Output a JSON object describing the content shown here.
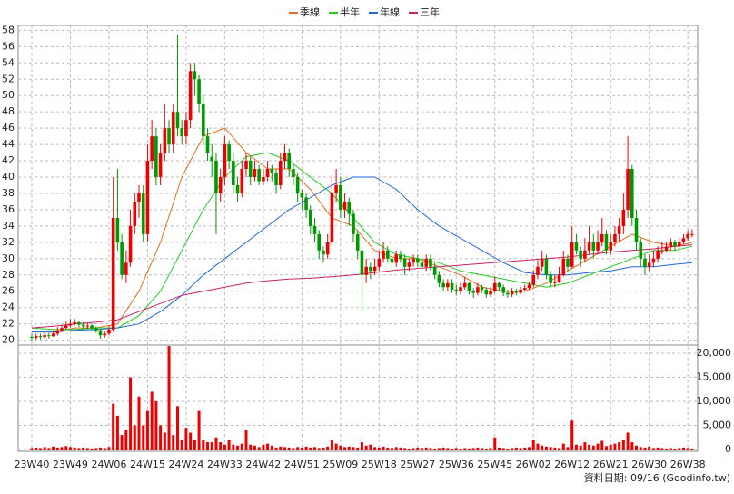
{
  "chart_data": {
    "type": "candlestick",
    "legend": [
      {
        "name": "季線",
        "color": "#e07020"
      },
      {
        "name": "半年",
        "color": "#22cc22"
      },
      {
        "name": "年線",
        "color": "#2266dd"
      },
      {
        "name": "三年",
        "color": "#cc2266"
      }
    ],
    "footer": "資料日期: 09/16 (Goodinfo.tw)",
    "categories": [
      "23W40",
      null,
      null,
      null,
      null,
      null,
      null,
      null,
      null,
      "23W49",
      null,
      null,
      null,
      null,
      null,
      null,
      null,
      null,
      "24W06",
      null,
      null,
      null,
      null,
      null,
      null,
      null,
      null,
      "24W15",
      null,
      null,
      null,
      null,
      null,
      null,
      null,
      null,
      "24W24",
      null,
      null,
      null,
      null,
      null,
      null,
      null,
      null,
      "24W33",
      null,
      null,
      null,
      null,
      null,
      null,
      null,
      null,
      "24W42",
      null,
      null,
      null,
      null,
      null,
      null,
      null,
      null,
      "24W51",
      null,
      null,
      null,
      null,
      null,
      null,
      null,
      null,
      "25W09",
      null,
      null,
      null,
      null,
      null,
      null,
      null,
      null,
      "25W18",
      null,
      null,
      null,
      null,
      null,
      null,
      null,
      null,
      "25W27",
      null,
      null,
      null,
      null,
      null,
      null,
      null,
      null,
      "25W36",
      null,
      null,
      null,
      null,
      null,
      null,
      null,
      null,
      "25W45",
      null,
      null,
      null,
      null,
      null,
      null,
      null,
      null,
      "26W02",
      null,
      null,
      null,
      null,
      null,
      null,
      null,
      null,
      "26W12",
      null,
      null,
      null,
      null,
      null,
      null,
      null,
      null,
      "26W21",
      null,
      null,
      null,
      null,
      null,
      null,
      null,
      null,
      "26W30",
      null,
      null,
      null,
      null,
      null,
      null,
      null,
      null,
      "26W38",
      null
    ],
    "candles": [
      [
        20.4,
        20.8,
        20,
        20.3
      ],
      [
        20.3,
        20.8,
        20.1,
        20.5
      ],
      [
        20.5,
        20.8,
        20.1,
        20.4
      ],
      [
        20.4,
        20.9,
        20.2,
        20.6
      ],
      [
        20.6,
        20.9,
        20.2,
        20.5
      ],
      [
        20.5,
        21.2,
        20.4,
        20.8
      ],
      [
        20.8,
        21.6,
        20.6,
        21.2
      ],
      [
        21.2,
        21.9,
        21,
        21.5
      ],
      [
        21.5,
        22.3,
        21.3,
        21.8
      ],
      [
        21.8,
        22.6,
        21.6,
        22
      ],
      [
        22,
        22.6,
        21.8,
        22.2
      ],
      [
        22.2,
        22.4,
        21.6,
        21.9
      ],
      [
        21.9,
        22.2,
        21.4,
        21.7
      ],
      [
        21.7,
        22.1,
        21.4,
        21.8
      ],
      [
        21.8,
        22,
        21.2,
        21.5
      ],
      [
        21.5,
        21.7,
        20.9,
        21.2
      ],
      [
        21.2,
        21.4,
        20.2,
        20.6
      ],
      [
        20.6,
        21.1,
        20.3,
        20.8
      ],
      [
        20.8,
        21.8,
        20.6,
        21.3
      ],
      [
        21.3,
        40,
        21,
        35
      ],
      [
        35,
        41,
        31,
        32
      ],
      [
        32,
        33,
        27.5,
        28
      ],
      [
        28,
        31,
        27,
        29.5
      ],
      [
        29.5,
        36,
        29,
        34
      ],
      [
        34,
        38,
        33,
        37
      ],
      [
        37,
        39,
        35,
        38
      ],
      [
        38,
        39,
        32,
        33
      ],
      [
        33,
        44,
        32,
        42
      ],
      [
        42,
        47,
        41,
        45
      ],
      [
        45,
        46,
        39,
        40
      ],
      [
        40,
        44,
        39,
        43
      ],
      [
        43,
        49,
        42,
        46
      ],
      [
        46,
        47,
        43,
        44
      ],
      [
        44,
        49,
        43,
        48
      ],
      [
        48,
        57.5,
        45,
        46
      ],
      [
        46,
        47,
        44,
        45
      ],
      [
        45,
        48,
        44,
        47
      ],
      [
        47,
        54,
        46,
        53
      ],
      [
        53,
        54,
        50,
        52
      ],
      [
        52,
        52.5,
        48,
        49
      ],
      [
        49,
        50,
        44,
        45
      ],
      [
        45,
        46,
        42,
        43
      ],
      [
        42.5,
        44,
        40,
        42
      ],
      [
        42,
        43,
        33,
        38
      ],
      [
        38,
        41,
        37,
        40
      ],
      [
        40,
        45,
        39,
        44
      ],
      [
        44,
        44.5,
        41,
        42
      ],
      [
        42,
        43,
        38,
        39
      ],
      [
        39,
        40,
        37,
        38
      ],
      [
        38,
        42,
        37.5,
        41
      ],
      [
        41,
        43,
        40,
        42
      ],
      [
        42,
        42.5,
        39,
        40
      ],
      [
        40,
        42,
        39.5,
        41
      ],
      [
        41,
        41.5,
        39,
        39.5
      ],
      [
        39.5,
        41,
        39,
        40
      ],
      [
        40,
        42,
        39.5,
        41
      ],
      [
        41,
        41.5,
        39.5,
        40.5
      ],
      [
        40.5,
        41,
        38,
        39
      ],
      [
        39,
        43,
        38.5,
        42
      ],
      [
        42,
        44,
        41,
        43
      ],
      [
        43,
        43.5,
        40,
        41
      ],
      [
        41,
        41.5,
        39,
        40
      ],
      [
        40,
        40.5,
        37,
        38
      ],
      [
        38,
        38.5,
        36,
        37.5
      ],
      [
        37.5,
        38,
        35,
        36
      ],
      [
        36,
        36.5,
        33,
        34
      ],
      [
        34,
        35,
        32,
        33
      ],
      [
        33,
        33.5,
        30,
        31
      ],
      [
        31,
        31.5,
        29.5,
        30.5
      ],
      [
        30.5,
        33,
        30,
        32
      ],
      [
        32,
        40,
        31.5,
        38
      ],
      [
        38,
        41,
        37,
        39
      ],
      [
        39,
        40,
        35,
        36
      ],
      [
        36,
        38,
        35,
        37
      ],
      [
        37,
        37.5,
        34,
        35.5
      ],
      [
        35.5,
        36,
        32,
        33
      ],
      [
        33,
        33.5,
        30,
        31
      ],
      [
        31,
        31.5,
        23.5,
        28
      ],
      [
        28,
        30,
        27,
        29
      ],
      [
        29,
        29.5,
        27.5,
        28.5
      ],
      [
        28.5,
        30,
        28,
        29
      ],
      [
        29,
        31,
        28.5,
        30
      ],
      [
        30,
        32,
        29.5,
        31
      ],
      [
        31,
        31.5,
        29.5,
        30
      ],
      [
        30,
        30.5,
        28.5,
        29.5
      ],
      [
        29.5,
        31,
        29,
        30.5
      ],
      [
        30.5,
        31,
        29.5,
        30
      ],
      [
        30,
        30.5,
        28,
        29
      ],
      [
        29,
        30,
        28.5,
        29.5
      ],
      [
        29.5,
        30.5,
        29,
        30
      ],
      [
        30,
        30.5,
        29,
        29.5
      ],
      [
        29.5,
        30,
        28.5,
        29
      ],
      [
        29,
        30.5,
        28.5,
        30
      ],
      [
        30,
        30.5,
        28.5,
        29
      ],
      [
        29,
        29.5,
        27.5,
        28
      ],
      [
        28,
        28.5,
        26.5,
        27
      ],
      [
        27,
        27.5,
        26,
        26.5
      ],
      [
        26.5,
        27.5,
        26,
        27
      ],
      [
        27,
        27.5,
        25.8,
        26.2
      ],
      [
        26.2,
        26.8,
        25.5,
        26
      ],
      [
        26,
        27,
        25.6,
        26.5
      ],
      [
        26.5,
        27.8,
        26.2,
        27
      ],
      [
        27,
        27.2,
        25.6,
        26
      ],
      [
        26,
        26.4,
        25.2,
        25.8
      ],
      [
        25.8,
        27,
        25.5,
        26.5
      ],
      [
        26.5,
        26.8,
        25.8,
        26.2
      ],
      [
        26.2,
        26.5,
        25.2,
        25.6
      ],
      [
        25.6,
        26.5,
        25.3,
        26
      ],
      [
        26,
        27.8,
        25.8,
        27
      ],
      [
        27,
        27.2,
        26,
        26.5
      ],
      [
        26.5,
        26.8,
        25.4,
        25.8
      ],
      [
        25.8,
        26.2,
        25.2,
        25.6
      ],
      [
        25.6,
        26.4,
        25.3,
        26
      ],
      [
        26,
        26.3,
        25.5,
        25.8
      ],
      [
        25.8,
        26.6,
        25.6,
        26.2
      ],
      [
        26.2,
        26.8,
        26,
        26.4
      ],
      [
        26.4,
        27.2,
        26.2,
        26.8
      ],
      [
        26.8,
        28.6,
        26.5,
        28
      ],
      [
        28,
        29.8,
        27.5,
        29
      ],
      [
        29,
        31,
        28.5,
        30
      ],
      [
        30,
        30.5,
        27.5,
        28
      ],
      [
        28,
        28.5,
        26.5,
        27
      ],
      [
        27,
        28,
        26.5,
        27.2
      ],
      [
        27.2,
        29,
        27,
        28
      ],
      [
        28,
        31,
        27.8,
        30
      ],
      [
        30,
        30.5,
        28.5,
        29
      ],
      [
        29,
        34,
        28.8,
        32
      ],
      [
        32,
        33,
        30.5,
        31
      ],
      [
        31,
        31.5,
        29,
        30
      ],
      [
        30,
        32.5,
        29.5,
        31
      ],
      [
        31,
        34,
        30.5,
        32
      ],
      [
        32,
        33,
        30,
        31
      ],
      [
        31,
        33.5,
        30.5,
        32
      ],
      [
        32,
        35,
        31.5,
        33
      ],
      [
        33,
        33.5,
        30.5,
        31
      ],
      [
        31,
        33,
        30.5,
        32
      ],
      [
        32,
        34,
        31.5,
        33
      ],
      [
        33,
        35,
        32,
        34
      ],
      [
        34,
        38,
        33,
        36
      ],
      [
        36,
        45,
        35,
        41
      ],
      [
        41,
        41.5,
        34,
        35
      ],
      [
        35,
        36,
        31,
        32
      ],
      [
        32,
        32.5,
        29,
        30
      ],
      [
        30,
        30.5,
        28,
        29
      ],
      [
        29,
        30.5,
        28.5,
        29.5
      ],
      [
        29.5,
        31,
        29,
        30
      ],
      [
        30,
        31.5,
        29.5,
        31
      ],
      [
        31,
        32,
        30.5,
        31
      ],
      [
        31,
        32,
        30.8,
        31.5
      ],
      [
        31.5,
        32.5,
        31,
        32
      ],
      [
        32,
        32.3,
        31,
        31.5
      ],
      [
        31.5,
        32.6,
        31.2,
        32
      ],
      [
        32,
        33,
        31.8,
        32.5
      ],
      [
        32.5,
        33.5,
        32.2,
        33
      ],
      [
        33,
        33.6,
        32.6,
        33
      ]
    ],
    "volume": [
      300,
      400,
      300,
      500,
      300,
      600,
      400,
      500,
      700,
      500,
      400,
      300,
      400,
      300,
      200,
      300,
      400,
      300,
      500,
      9500,
      7000,
      3000,
      4000,
      15000,
      5000,
      11000,
      5000,
      8000,
      12000,
      10000,
      5000,
      3500,
      21500,
      3000,
      9000,
      2000,
      4500,
      3500,
      2000,
      8000,
      2000,
      1500,
      1500,
      2500,
      1500,
      1000,
      2000,
      1000,
      800,
      1200,
      4000,
      1000,
      800,
      500,
      1000,
      1200,
      800,
      400,
      600,
      500,
      400,
      300,
      500,
      400,
      600,
      400,
      500,
      300,
      400,
      600,
      2000,
      1200,
      800,
      500,
      600,
      500,
      400,
      1500,
      800,
      1000,
      500,
      400,
      600,
      400,
      300,
      500,
      400,
      300,
      200,
      300,
      400,
      300,
      400,
      300,
      200,
      300,
      400,
      300,
      200,
      300,
      200,
      300,
      200,
      300,
      400,
      300,
      200,
      300,
      2500,
      400,
      300,
      200,
      300,
      400,
      300,
      400,
      500,
      2000,
      1200,
      800,
      600,
      500,
      400,
      300,
      1200,
      500,
      6000,
      1000,
      800,
      1500,
      1000,
      800,
      1200,
      1800,
      700,
      1000,
      1200,
      1500,
      2000,
      3500,
      1500,
      800,
      500,
      400,
      600,
      300,
      400,
      300,
      200,
      300,
      200,
      300,
      400,
      300,
      200
    ],
    "volume_color": "#ee0000",
    "up_color": "#ee0000",
    "down_color": "#009900",
    "series": [
      {
        "name": "季線",
        "color": "#e07020",
        "x": [
          0,
          5,
          10,
          15,
          20,
          25,
          30,
          35,
          40,
          45,
          50,
          55,
          60,
          65,
          70,
          75,
          80,
          85,
          90,
          95,
          100,
          105,
          110,
          115,
          120,
          125,
          130,
          135,
          140,
          145,
          150,
          154
        ],
        "values": [
          21,
          21,
          21.5,
          21.5,
          22,
          26,
          32,
          40,
          45,
          46,
          43,
          41,
          41,
          38.5,
          35,
          34,
          31,
          30,
          30,
          29,
          28,
          26.5,
          26,
          26,
          27,
          28.5,
          30,
          31.5,
          33,
          32,
          31.5,
          32
        ]
      },
      {
        "name": "半年",
        "color": "#22cc22",
        "x": [
          0,
          5,
          10,
          15,
          20,
          25,
          30,
          35,
          40,
          45,
          50,
          55,
          60,
          65,
          70,
          75,
          80,
          85,
          90,
          95,
          100,
          105,
          110,
          115,
          120,
          125,
          130,
          135,
          140,
          145,
          150,
          154
        ],
        "values": [
          21.5,
          21.3,
          21.3,
          21.5,
          21.5,
          23,
          26,
          31,
          36,
          40,
          42.5,
          43,
          42,
          40,
          38,
          35,
          32,
          30.5,
          30,
          29.5,
          28.5,
          28,
          27.5,
          27,
          26.5,
          27,
          28,
          29,
          30,
          31,
          31,
          31.5
        ]
      },
      {
        "name": "年線",
        "color": "#2266dd",
        "x": [
          0,
          5,
          10,
          15,
          20,
          25,
          30,
          35,
          40,
          45,
          50,
          55,
          60,
          65,
          70,
          75,
          80,
          85,
          90,
          95,
          100,
          105,
          110,
          115,
          120,
          125,
          130,
          135,
          140,
          145,
          150,
          154
        ],
        "values": [
          21,
          21,
          21.2,
          21.3,
          21.5,
          22,
          23.5,
          25.5,
          28,
          30,
          32,
          34,
          36,
          37.5,
          39,
          40,
          40,
          38.5,
          36,
          34,
          32.5,
          31,
          29.5,
          28.3,
          28,
          28,
          28.3,
          28.5,
          29,
          29,
          29.3,
          29.5
        ]
      },
      {
        "name": "三年",
        "color": "#cc2266",
        "x": [
          0,
          5,
          10,
          15,
          20,
          25,
          30,
          35,
          40,
          45,
          50,
          55,
          60,
          65,
          70,
          75,
          80,
          85,
          90,
          95,
          100,
          105,
          110,
          115,
          120,
          125,
          130,
          135,
          140,
          145,
          150,
          154
        ],
        "values": [
          21.5,
          21.7,
          22,
          22.2,
          22.5,
          23.5,
          24.5,
          25.5,
          26,
          26.5,
          27,
          27.3,
          27.5,
          27.6,
          27.8,
          28,
          28.3,
          28.6,
          28.8,
          29,
          29.2,
          29.4,
          29.6,
          29.8,
          30,
          30.2,
          30.5,
          30.8,
          31,
          31.2,
          31.5,
          31.7
        ]
      }
    ],
    "ylim": [
      19.4,
      58.6
    ],
    "yticks": [
      20,
      22,
      24,
      26,
      28,
      30,
      32,
      34,
      36,
      38,
      40,
      42,
      44,
      46,
      48,
      50,
      52,
      54,
      56,
      58
    ],
    "y2lim": [
      0,
      21700
    ],
    "y2ticks": [
      0,
      {
        "value": 5000,
        "label": "5,000"
      },
      {
        "value": 10000,
        "label": "10,000"
      },
      {
        "value": 15000,
        "label": "15,000"
      },
      {
        "value": 20000,
        "label": "20,000"
      }
    ],
    "grid": true
  }
}
